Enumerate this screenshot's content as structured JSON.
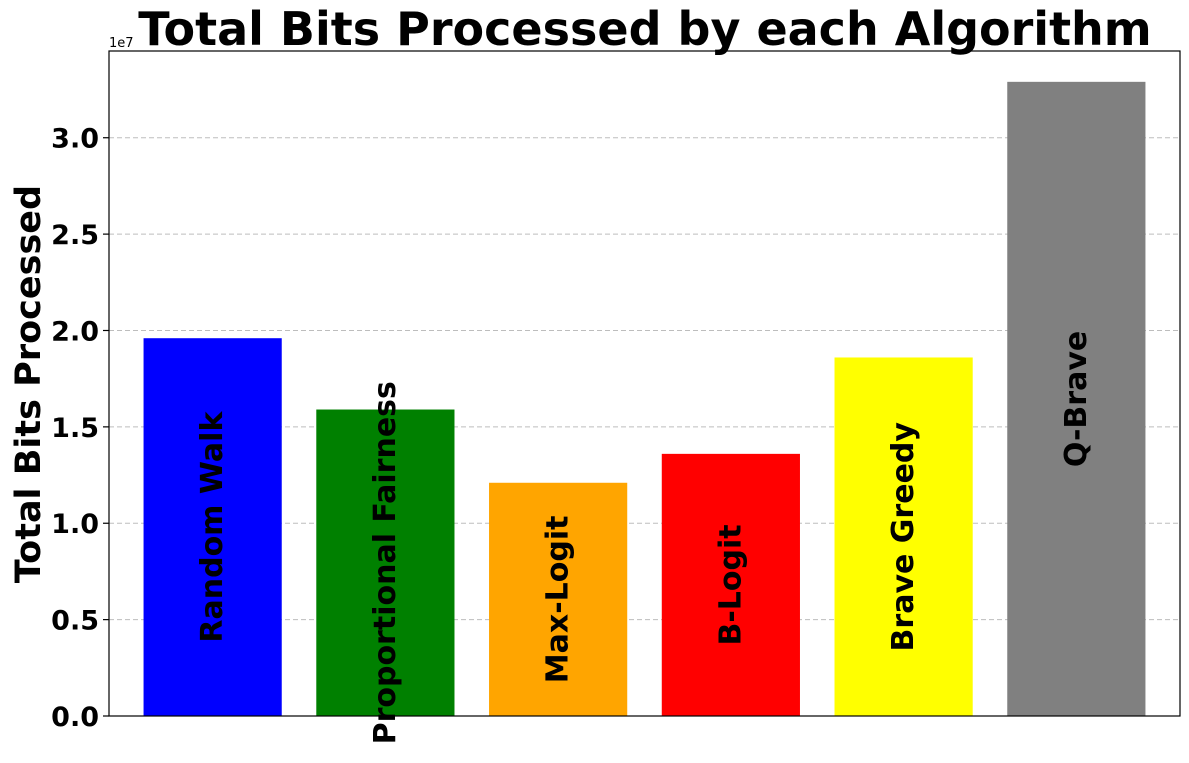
{
  "chart_data": {
    "type": "bar",
    "title": "Total Bits Processed by each Algorithm",
    "xlabel": "",
    "ylabel": "Total Bits Processed",
    "y_offset_label": "1e7",
    "categories": [
      "Random Walk",
      "Proportional Fairness",
      "Max-Logit",
      "B-Logit",
      "Brave Greedy",
      "Q-Brave"
    ],
    "values": [
      19600000,
      15900000,
      12100000,
      13600000,
      18600000,
      32900000
    ],
    "colors": [
      "#0000ff",
      "#008000",
      "#ffa500",
      "#ff0000",
      "#ffff00",
      "#808080"
    ],
    "ylim": [
      0,
      34500000
    ],
    "yticks": [
      0,
      5000000,
      10000000,
      15000000,
      20000000,
      25000000,
      30000000
    ],
    "ytick_labels": [
      "0.0",
      "0.5",
      "1.0",
      "1.5",
      "2.0",
      "2.5",
      "3.0"
    ],
    "grid": true,
    "legend": "none"
  }
}
